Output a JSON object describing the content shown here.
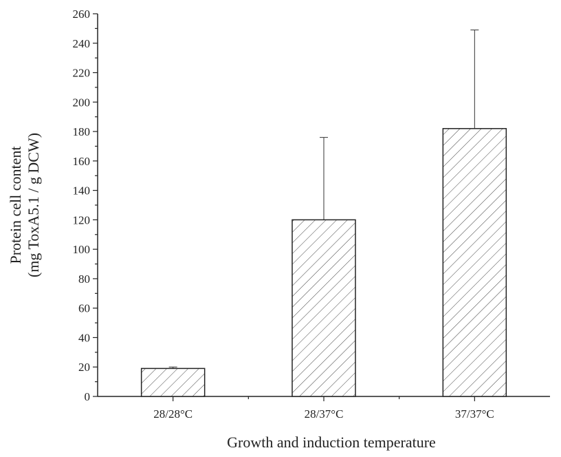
{
  "chart_data": {
    "type": "bar",
    "categories": [
      "28/28°C",
      "28/37°C",
      "37/37°C"
    ],
    "values": [
      19,
      120,
      182
    ],
    "error_upper": [
      20,
      176,
      249
    ],
    "ylabel_lines": [
      "Protein cell content",
      "(mg ToxA5.1 / g DCW)"
    ],
    "xlabel": "Growth and induction temperature",
    "ylim": [
      0,
      260
    ],
    "yticks": [
      0,
      20,
      40,
      60,
      80,
      100,
      120,
      140,
      160,
      180,
      200,
      220,
      240,
      260
    ],
    "bar_fill": "hatched",
    "grid": false,
    "legend": "none"
  }
}
